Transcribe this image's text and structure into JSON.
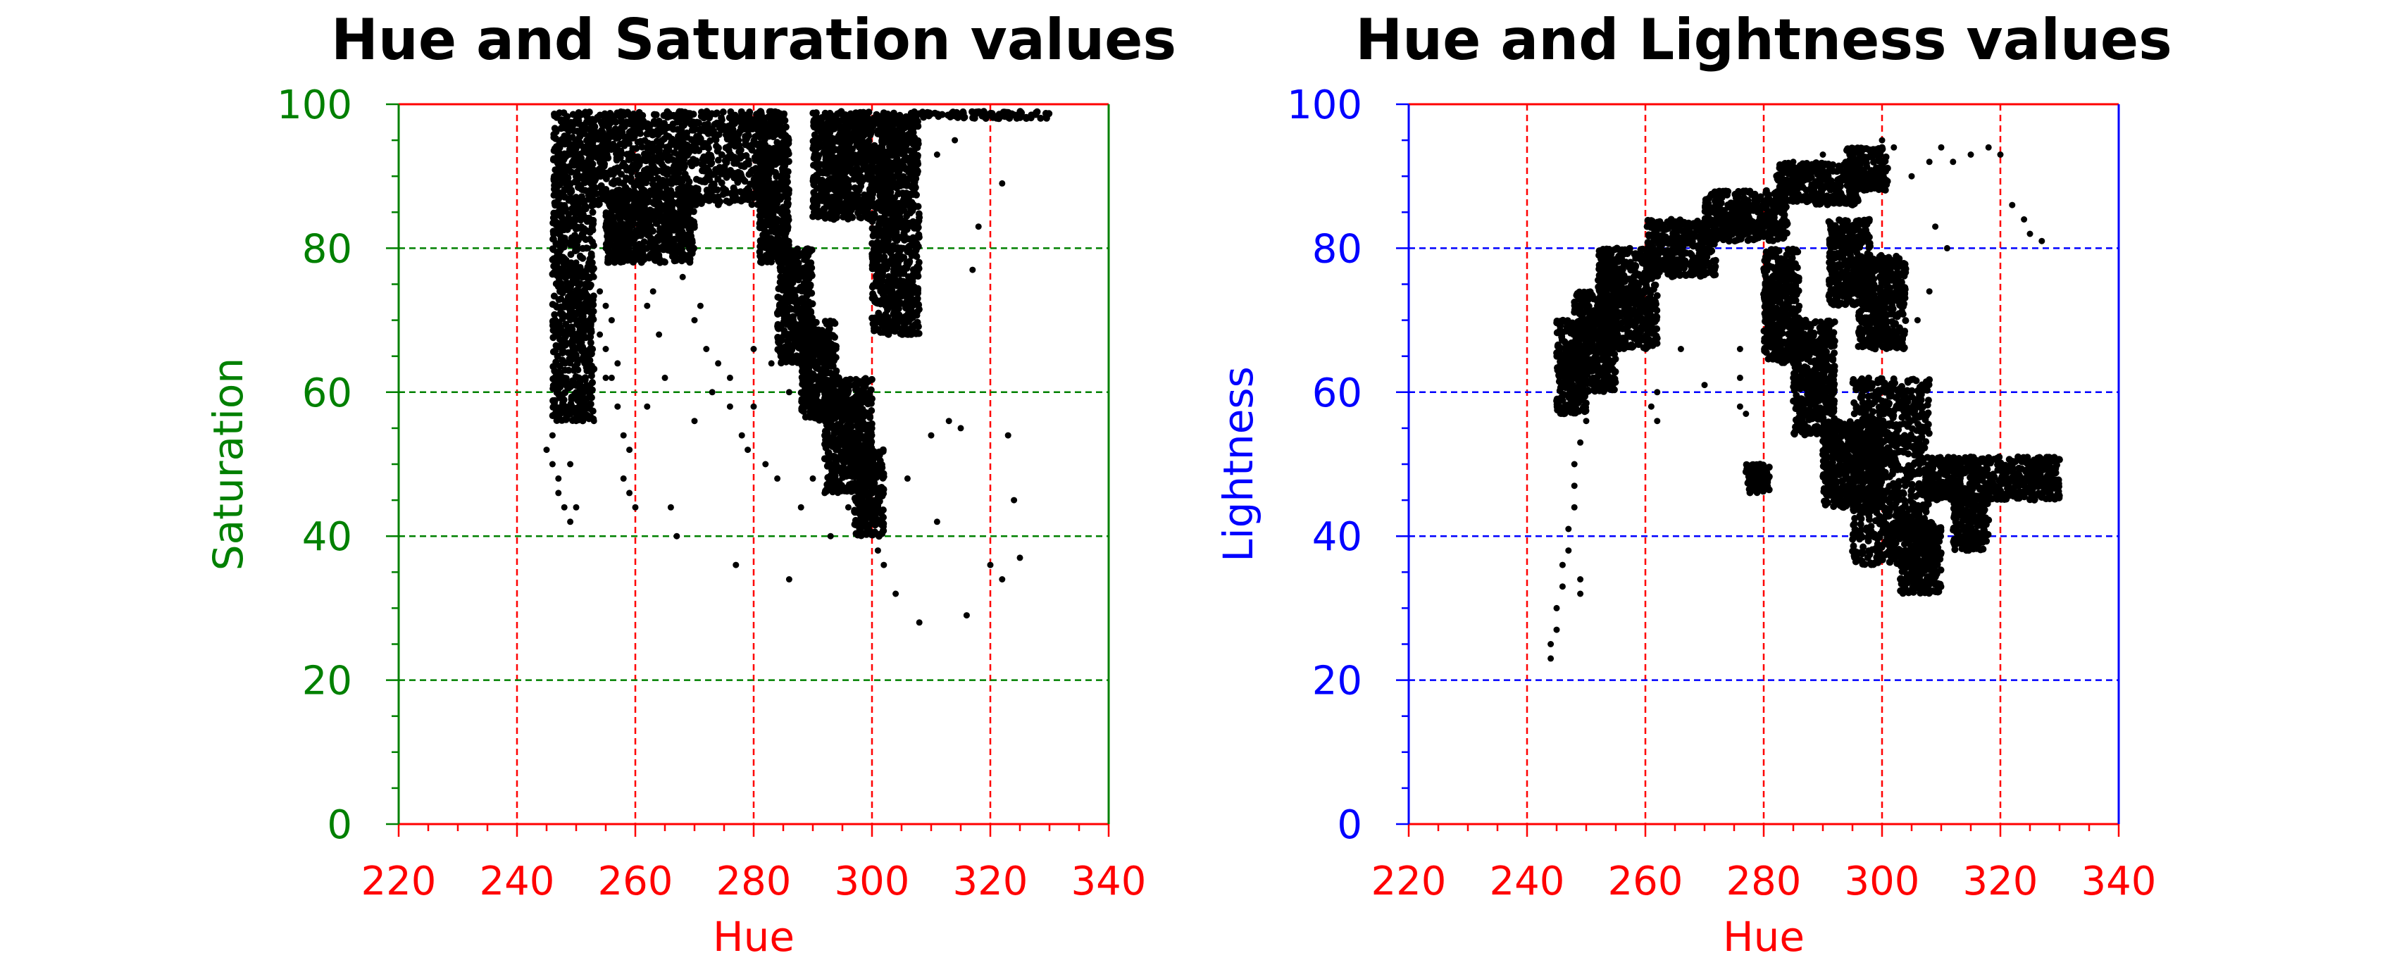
{
  "figure": {
    "panel_count": 2
  },
  "chart_data": [
    {
      "type": "scatter",
      "title": "Hue and Saturation values",
      "xlabel": "Hue",
      "ylabel": "Saturation",
      "xlim": [
        220,
        340
      ],
      "ylim": [
        0,
        100
      ],
      "xticks": [
        220,
        240,
        260,
        280,
        300,
        320,
        340
      ],
      "yticks": [
        0,
        20,
        40,
        60,
        80,
        100
      ],
      "x_tick_labels": [
        "220",
        "240",
        "260",
        "280",
        "300",
        "320",
        "340"
      ],
      "y_tick_labels": [
        "0",
        "20",
        "40",
        "60",
        "80",
        "100"
      ],
      "x_axis_color": "#ff0000",
      "y_axis_color": "#008000",
      "x_grid_color": "#ff0000",
      "y_grid_color": "#008000",
      "grid": true,
      "legend": "none",
      "point_color": "#000000",
      "series": [
        {
          "points": [
            [
              245,
              52
            ],
            [
              246,
              50
            ],
            [
              246,
              54
            ],
            [
              247,
              46
            ],
            [
              247,
              48
            ],
            [
              248,
              44
            ],
            [
              248,
              58
            ],
            [
              248,
              62
            ],
            [
              249,
              42
            ],
            [
              249,
              50
            ],
            [
              249,
              64
            ],
            [
              249,
              70
            ],
            [
              250,
              44
            ],
            [
              250,
              56
            ],
            [
              250,
              66
            ],
            [
              250,
              72
            ],
            [
              250,
              78
            ],
            [
              251,
              74
            ],
            [
              251,
              82
            ],
            [
              252,
              80
            ],
            [
              253,
              76
            ],
            [
              253,
              86
            ],
            [
              254,
              68
            ],
            [
              254,
              74
            ],
            [
              255,
              66
            ],
            [
              255,
              72
            ],
            [
              255,
              80
            ],
            [
              256,
              62
            ],
            [
              256,
              70
            ],
            [
              257,
              58
            ],
            [
              257,
              64
            ],
            [
              258,
              48
            ],
            [
              258,
              54
            ],
            [
              259,
              46
            ],
            [
              259,
              52
            ],
            [
              260,
              44
            ],
            [
              261,
              78
            ],
            [
              262,
              72
            ],
            [
              263,
              74
            ],
            [
              264,
              68
            ],
            [
              265,
              80
            ],
            [
              266,
              44
            ],
            [
              267,
              40
            ],
            [
              268,
              76
            ],
            [
              270,
              70
            ],
            [
              271,
              72
            ],
            [
              272,
              66
            ],
            [
              274,
              64
            ],
            [
              276,
              62
            ],
            [
              277,
              36
            ],
            [
              278,
              54
            ],
            [
              279,
              52
            ],
            [
              280,
              58
            ],
            [
              282,
              50
            ],
            [
              284,
              48
            ],
            [
              286,
              34
            ],
            [
              288,
              44
            ],
            [
              290,
              48
            ],
            [
              292,
              46
            ],
            [
              293,
              40
            ],
            [
              295,
              58
            ],
            [
              296,
              44
            ],
            [
              298,
              56
            ],
            [
              300,
              54
            ],
            [
              301,
              38
            ],
            [
              302,
              36
            ],
            [
              304,
              32
            ],
            [
              306,
              48
            ],
            [
              308,
              28
            ],
            [
              310,
              54
            ],
            [
              311,
              42
            ],
            [
              313,
              56
            ],
            [
              315,
              55
            ],
            [
              316,
              29
            ],
            [
              317,
              77
            ],
            [
              318,
              83
            ],
            [
              320,
              36
            ],
            [
              322,
              34
            ],
            [
              323,
              54
            ],
            [
              324,
              45
            ],
            [
              325,
              37
            ],
            [
              322,
              89
            ],
            [
              311,
              93
            ],
            [
              314,
              95
            ],
            [
              255,
              62
            ],
            [
              252,
              60
            ],
            [
              250,
              60
            ],
            [
              253,
              56
            ],
            [
              262,
              58
            ],
            [
              265,
              62
            ],
            [
              270,
              56
            ],
            [
              273,
              60
            ],
            [
              276,
              58
            ],
            [
              280,
              66
            ],
            [
              283,
              64
            ],
            [
              286,
              60
            ],
            [
              289,
              58
            ]
          ],
          "dense_regions": [
            {
              "x_range": [
                246,
                253
              ],
              "y_range": [
                56,
                99
              ]
            },
            {
              "x_range": [
                252,
                282
              ],
              "y_range": [
                86,
                99
              ]
            },
            {
              "x_range": [
                255,
                270
              ],
              "y_range": [
                78,
                88
              ]
            },
            {
              "x_range": [
                281,
                286
              ],
              "y_range": [
                78,
                99
              ]
            },
            {
              "x_range": [
                284,
                290
              ],
              "y_range": [
                64,
                80
              ]
            },
            {
              "x_range": [
                288,
                294
              ],
              "y_range": [
                56,
                70
              ]
            },
            {
              "x_range": [
                292,
                300
              ],
              "y_range": [
                46,
                62
              ]
            },
            {
              "x_range": [
                297,
                302
              ],
              "y_range": [
                40,
                52
              ]
            },
            {
              "x_range": [
                290,
                300
              ],
              "y_range": [
                84,
                99
              ]
            },
            {
              "x_range": [
                300,
                308
              ],
              "y_range": [
                68,
                99
              ]
            },
            {
              "x_range": [
                306,
                330
              ],
              "y_range": [
                98,
                99
              ]
            }
          ]
        }
      ]
    },
    {
      "type": "scatter",
      "title": "Hue and Lightness values",
      "xlabel": "Hue",
      "ylabel": "Lightness",
      "xlim": [
        220,
        340
      ],
      "ylim": [
        0,
        100
      ],
      "xticks": [
        220,
        240,
        260,
        280,
        300,
        320,
        340
      ],
      "yticks": [
        0,
        20,
        40,
        60,
        80,
        100
      ],
      "x_tick_labels": [
        "220",
        "240",
        "260",
        "280",
        "300",
        "320",
        "340"
      ],
      "y_tick_labels": [
        "0",
        "20",
        "40",
        "60",
        "80",
        "100"
      ],
      "x_axis_color": "#ff0000",
      "y_axis_color": "#0000ff",
      "x_grid_color": "#ff0000",
      "y_grid_color": "#0000ff",
      "grid": true,
      "legend": "none",
      "point_color": "#000000",
      "series": [
        {
          "points": [
            [
              244,
              23
            ],
            [
              244,
              25
            ],
            [
              245,
              27
            ],
            [
              245,
              30
            ],
            [
              246,
              33
            ],
            [
              246,
              36
            ],
            [
              247,
              38
            ],
            [
              247,
              41
            ],
            [
              248,
              44
            ],
            [
              248,
              47
            ],
            [
              248,
              50
            ],
            [
              249,
              34
            ],
            [
              249,
              32
            ],
            [
              249,
              53
            ],
            [
              250,
              56
            ],
            [
              261,
              58
            ],
            [
              262,
              56
            ],
            [
              262,
              60
            ],
            [
              266,
              66
            ],
            [
              270,
              61
            ],
            [
              276,
              62
            ],
            [
              276,
              58
            ],
            [
              277,
              57
            ],
            [
              276,
              66
            ],
            [
              305,
              90
            ],
            [
              308,
              92
            ],
            [
              310,
              94
            ],
            [
              312,
              92
            ],
            [
              315,
              93
            ],
            [
              318,
              94
            ],
            [
              320,
              93
            ],
            [
              322,
              86
            ],
            [
              324,
              84
            ],
            [
              325,
              82
            ],
            [
              327,
              81
            ],
            [
              309,
              83
            ],
            [
              311,
              80
            ],
            [
              308,
              74
            ],
            [
              306,
              70
            ],
            [
              285,
              92
            ],
            [
              290,
              93
            ],
            [
              296,
              92
            ],
            [
              300,
              95
            ],
            [
              302,
              94
            ]
          ],
          "dense_regions": [
            {
              "x_range": [
                245,
                250
              ],
              "y_range": [
                57,
                70
              ]
            },
            {
              "x_range": [
                248,
                255
              ],
              "y_range": [
                60,
                74
              ]
            },
            {
              "x_range": [
                252,
                262
              ],
              "y_range": [
                66,
                80
              ]
            },
            {
              "x_range": [
                260,
                272
              ],
              "y_range": [
                76,
                84
              ]
            },
            {
              "x_range": [
                270,
                284
              ],
              "y_range": [
                81,
                88
              ]
            },
            {
              "x_range": [
                282,
                296
              ],
              "y_range": [
                86,
                92
              ]
            },
            {
              "x_range": [
                294,
                301
              ],
              "y_range": [
                88,
                94
              ]
            },
            {
              "x_range": [
                280,
                286
              ],
              "y_range": [
                64,
                80
              ]
            },
            {
              "x_range": [
                285,
                292
              ],
              "y_range": [
                54,
                70
              ]
            },
            {
              "x_range": [
                277,
                281
              ],
              "y_range": [
                46,
                50
              ]
            },
            {
              "x_range": [
                291,
                298
              ],
              "y_range": [
                72,
                84
              ]
            },
            {
              "x_range": [
                296,
                304
              ],
              "y_range": [
                66,
                79
              ]
            },
            {
              "x_range": [
                290,
                300
              ],
              "y_range": [
                44,
                56
              ]
            },
            {
              "x_range": [
                295,
                308
              ],
              "y_range": [
                36,
                62
              ]
            },
            {
              "x_range": [
                303,
                310
              ],
              "y_range": [
                32,
                42
              ]
            },
            {
              "x_range": [
                308,
                330
              ],
              "y_range": [
                45,
                51
              ]
            },
            {
              "x_range": [
                312,
                318
              ],
              "y_range": [
                38,
                46
              ]
            }
          ]
        }
      ]
    }
  ]
}
